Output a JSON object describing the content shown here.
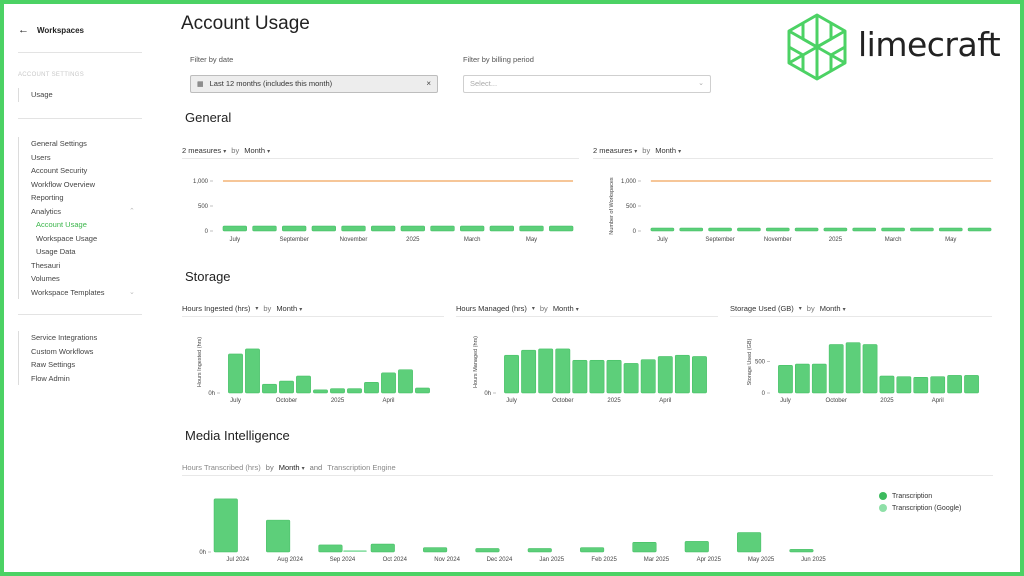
{
  "sidebar": {
    "back_label": "Workspaces",
    "section_title": "ACCOUNT SETTINGS",
    "usage_label": "Usage",
    "items": [
      {
        "label": "General Settings",
        "active": false,
        "sub": false
      },
      {
        "label": "Users",
        "active": false,
        "sub": false
      },
      {
        "label": "Account Security",
        "active": false,
        "sub": false
      },
      {
        "label": "Workflow Overview",
        "active": false,
        "sub": false
      },
      {
        "label": "Reporting",
        "active": false,
        "sub": false
      },
      {
        "label": "Analytics",
        "active": false,
        "sub": false,
        "chevron": "up"
      },
      {
        "label": "Account Usage",
        "active": true,
        "sub": true
      },
      {
        "label": "Workspace Usage",
        "active": false,
        "sub": true
      },
      {
        "label": "Usage Data",
        "active": false,
        "sub": true
      },
      {
        "label": "Thesauri",
        "active": false,
        "sub": false
      },
      {
        "label": "Volumes",
        "active": false,
        "sub": false
      },
      {
        "label": "Workspace Templates",
        "active": false,
        "sub": false,
        "chevron": "down"
      }
    ],
    "items2": [
      {
        "label": "Service Integrations"
      },
      {
        "label": "Custom Workflows"
      },
      {
        "label": "Raw Settings"
      },
      {
        "label": "Flow Admin"
      }
    ]
  },
  "page": {
    "title": "Account Usage",
    "filter_date_label": "Filter by date",
    "filter_date_value": "Last 12 months (includes this month)",
    "filter_billing_label": "Filter by billing period",
    "filter_billing_placeholder": "Select...",
    "clear_icon": "×"
  },
  "logo": {
    "text": "limecraft",
    "color": "#4cd264"
  },
  "colors": {
    "bar": "#5dcf7a",
    "bar_stroke": "#3dbb5e",
    "line": "#f0a35a",
    "accent": "#3ab54a"
  },
  "sections": {
    "general": "General",
    "storage": "Storage",
    "media": "Media Intelligence"
  },
  "general_left": {
    "measures": "2 measures",
    "by": "by",
    "period": "Month"
  },
  "general_right": {
    "measures": "2 measures",
    "by": "by",
    "period": "Month"
  },
  "storage_1": {
    "measure": "Hours Ingested (hrs)",
    "by": "by",
    "period": "Month"
  },
  "storage_2": {
    "measure": "Hours Managed (hrs)",
    "by": "by",
    "period": "Month"
  },
  "storage_3": {
    "measure": "Storage Used (GB)",
    "by": "by",
    "period": "Month"
  },
  "media_head": {
    "measure": "Hours Transcribed (hrs)",
    "by": "by",
    "period": "Month",
    "and": "and",
    "engine": "Transcription Engine"
  },
  "legend": [
    {
      "label": "Transcription",
      "color": "#3dbb5e"
    },
    {
      "label": "Transcription (Google)",
      "color": "#8fe0a8"
    }
  ],
  "chart_data": [
    {
      "type": "bar",
      "categories": [
        "Jul",
        "Aug",
        "Sep",
        "Oct",
        "Nov",
        "Dec",
        "2025",
        "Feb",
        "Mar",
        "Apr",
        "May",
        "Jun"
      ],
      "tick_labels": [
        "July",
        "September",
        "November",
        "2025",
        "March",
        "May"
      ],
      "yticks": [
        "1,000",
        "500",
        "0"
      ],
      "ylim": [
        0,
        1100
      ],
      "series": [
        {
          "type": "bar",
          "values": [
            100,
            100,
            100,
            100,
            100,
            100,
            100,
            100,
            100,
            100,
            100,
            100
          ]
        },
        {
          "type": "line",
          "values": [
            1000,
            1000,
            1000,
            1000,
            1000,
            1000,
            1000,
            1000,
            1000,
            1000,
            1000,
            1000
          ]
        }
      ]
    },
    {
      "type": "bar",
      "categories": [
        "Jul",
        "Aug",
        "Sep",
        "Oct",
        "Nov",
        "Dec",
        "2025",
        "Feb",
        "Mar",
        "Apr",
        "May",
        "Jun"
      ],
      "tick_labels": [
        "July",
        "September",
        "November",
        "2025",
        "March",
        "May"
      ],
      "yticks": [
        "1,000",
        "500",
        "0"
      ],
      "ylabel": "Number of Workspaces",
      "ylim": [
        0,
        1100
      ],
      "series": [
        {
          "type": "bar",
          "values": [
            25,
            25,
            25,
            25,
            25,
            25,
            25,
            25,
            25,
            25,
            25,
            25
          ]
        },
        {
          "type": "line",
          "values": [
            1000,
            1000,
            1000,
            1000,
            1000,
            1000,
            1000,
            1000,
            1000,
            1000,
            1000,
            1000
          ]
        }
      ]
    },
    {
      "type": "bar",
      "ylabel": "Hours Ingested (hrs)",
      "yticks": [
        "0h"
      ],
      "ylim": [
        0,
        100
      ],
      "tick_labels": [
        "July",
        "October",
        "2025",
        "April"
      ],
      "values": [
        62,
        70,
        14,
        19,
        27,
        5,
        7,
        7,
        17,
        32,
        37,
        8
      ]
    },
    {
      "type": "bar",
      "ylabel": "Hours Managed (hrs)",
      "yticks": [
        "0h"
      ],
      "ylim": [
        0,
        100
      ],
      "tick_labels": [
        "July",
        "October",
        "2025",
        "April"
      ],
      "values": [
        60,
        68,
        70,
        70,
        52,
        52,
        52,
        47,
        53,
        58,
        60,
        58
      ]
    },
    {
      "type": "bar",
      "ylabel": "Storage Used (GB)",
      "yticks": [
        "500",
        "0"
      ],
      "ylim": [
        0,
        1000
      ],
      "tick_labels": [
        "July",
        "October",
        "2025",
        "April"
      ],
      "values": [
        440,
        460,
        460,
        770,
        800,
        770,
        270,
        260,
        250,
        260,
        280,
        280
      ]
    },
    {
      "type": "bar",
      "ylabel": "",
      "yticks": [
        "0h"
      ],
      "ylim": [
        0,
        70
      ],
      "categories": [
        "Jul 2024",
        "Aug 2024",
        "Sep 2024",
        "Oct 2024",
        "Nov 2024",
        "Dec 2024",
        "Jan 2025",
        "Feb 2025",
        "Mar 2025",
        "Apr 2025",
        "May 2025",
        "Jun 2025"
      ],
      "series": [
        {
          "name": "Transcription",
          "values": [
            60,
            36,
            8,
            9,
            5,
            4,
            4,
            5,
            11,
            12,
            22,
            3
          ]
        },
        {
          "name": "Transcription (Google)",
          "values": [
            0,
            0,
            2,
            0,
            0,
            0,
            0,
            0,
            0,
            0,
            0,
            0
          ]
        }
      ]
    }
  ]
}
